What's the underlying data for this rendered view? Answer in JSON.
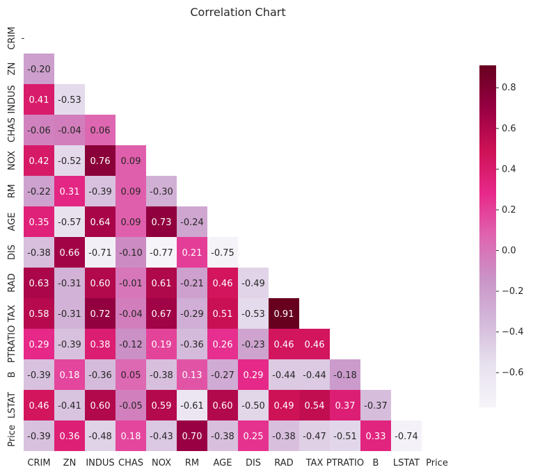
{
  "chart_data": {
    "type": "heatmap",
    "title": "Correlation Chart",
    "variables": [
      "CRIM",
      "ZN",
      "INDUS",
      "CHAS",
      "NOX",
      "RM",
      "AGE",
      "DIS",
      "RAD",
      "TAX",
      "PTRATIO",
      "B",
      "LSTAT",
      "Price"
    ],
    "mask": "upper-triangle-including-diagonal",
    "diagonal_label": "-",
    "matrix_lower": [
      [],
      [
        -0.2
      ],
      [
        0.41,
        -0.53
      ],
      [
        -0.06,
        -0.04,
        0.06
      ],
      [
        0.42,
        -0.52,
        0.76,
        0.09
      ],
      [
        -0.22,
        0.31,
        -0.39,
        0.09,
        -0.3
      ],
      [
        0.35,
        -0.57,
        0.64,
        0.09,
        0.73,
        -0.24
      ],
      [
        -0.38,
        0.66,
        -0.71,
        -0.1,
        -0.77,
        0.21,
        -0.75
      ],
      [
        0.63,
        -0.31,
        0.6,
        -0.01,
        0.61,
        -0.21,
        0.46,
        -0.49
      ],
      [
        0.58,
        -0.31,
        0.72,
        -0.04,
        0.67,
        -0.29,
        0.51,
        -0.53,
        0.91
      ],
      [
        0.29,
        -0.39,
        0.38,
        -0.12,
        0.19,
        -0.36,
        0.26,
        -0.23,
        0.46,
        0.46
      ],
      [
        -0.39,
        0.18,
        -0.36,
        0.05,
        -0.38,
        0.13,
        -0.27,
        0.29,
        -0.44,
        -0.44,
        -0.18
      ],
      [
        0.46,
        -0.41,
        0.6,
        -0.05,
        0.59,
        -0.61,
        0.6,
        -0.5,
        0.49,
        0.54,
        0.37,
        -0.37
      ],
      [
        -0.39,
        0.36,
        -0.48,
        0.18,
        -0.43,
        0.7,
        -0.38,
        0.25,
        -0.38,
        -0.47,
        -0.51,
        0.33,
        -0.74
      ]
    ],
    "value_format": "0.00",
    "colormap": "PuRd",
    "color_range": [
      -0.77,
      0.91
    ],
    "colorbar": {
      "ticks": [
        0.8,
        0.6,
        0.4,
        0.2,
        0.0,
        -0.2,
        -0.4,
        -0.6
      ],
      "tick_labels": [
        "0.8",
        "0.6",
        "0.4",
        "0.2",
        "0.0",
        "−0.2",
        "−0.4",
        "−0.6"
      ]
    },
    "colors": [
      "#f7f4f9",
      "#e7e1ef",
      "#d4b9da",
      "#c994c7",
      "#df65b0",
      "#e7298a",
      "#ce1256",
      "#980043",
      "#67001f"
    ]
  }
}
